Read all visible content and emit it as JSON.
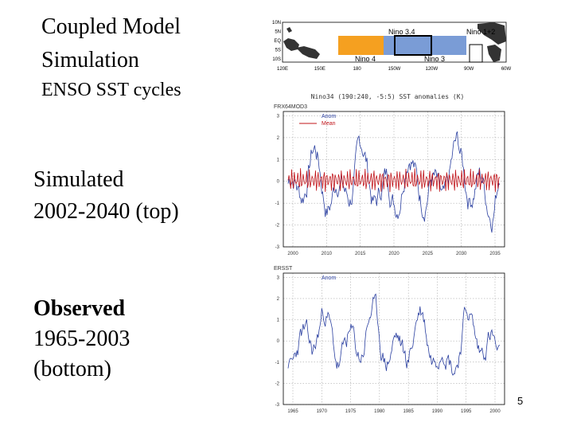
{
  "slide": {
    "heading_line1": "Coupled Model",
    "heading_line2": "Simulation",
    "subheading": "ENSO SST cycles",
    "simulated_bold": "Simulated",
    "simulated_range": "2002-2040 (top)",
    "observed_bold": "Observed",
    "observed_range": "1965-2003",
    "observed_note": "(bottom)",
    "page_number": "5"
  },
  "map": {
    "region_labels": [
      "Nino 3.4",
      "Nino 4",
      "Nino 3",
      "Nino 1+2"
    ],
    "lon_ticks": [
      "120E",
      "150E",
      "180",
      "150W",
      "120W",
      "90W",
      "60W"
    ],
    "lat_ticks": [
      "10N",
      "5N",
      "EQ",
      "5S",
      "10S"
    ],
    "colors": {
      "nino4": "#f5a020",
      "nino3": "#7a9cd6",
      "land": "#333333"
    }
  },
  "chart_data": [
    {
      "type": "line",
      "title": "Nino34 (190:240, -5:5) SST anomalies (K)",
      "subtitle": "FRX64MOD3",
      "series": [
        {
          "name": "Anom",
          "color": "#2a3fa0"
        },
        {
          "name": "Mean",
          "color": "#c0141a"
        }
      ],
      "x_ticks": [
        "2000",
        "2010",
        "2015",
        "2020",
        "2025",
        "2030",
        "2035"
      ],
      "y_ticks": [
        "3",
        "2",
        "1",
        "0",
        "-1",
        "-2",
        "-3"
      ],
      "ylim": [
        -3,
        3.2
      ],
      "grid": true,
      "legend": "top-left"
    },
    {
      "type": "line",
      "subtitle": "ERSST",
      "series": [
        {
          "name": "Anom",
          "color": "#2a3fa0"
        }
      ],
      "x_ticks": [
        "1965",
        "1970",
        "1975",
        "1980",
        "1985",
        "1990",
        "1995",
        "2000"
      ],
      "y_ticks": [
        "3",
        "2",
        "1",
        "0",
        "-1",
        "-2",
        "-3"
      ],
      "ylim": [
        -3,
        3.2
      ],
      "grid": true,
      "legend": "top-left"
    }
  ]
}
